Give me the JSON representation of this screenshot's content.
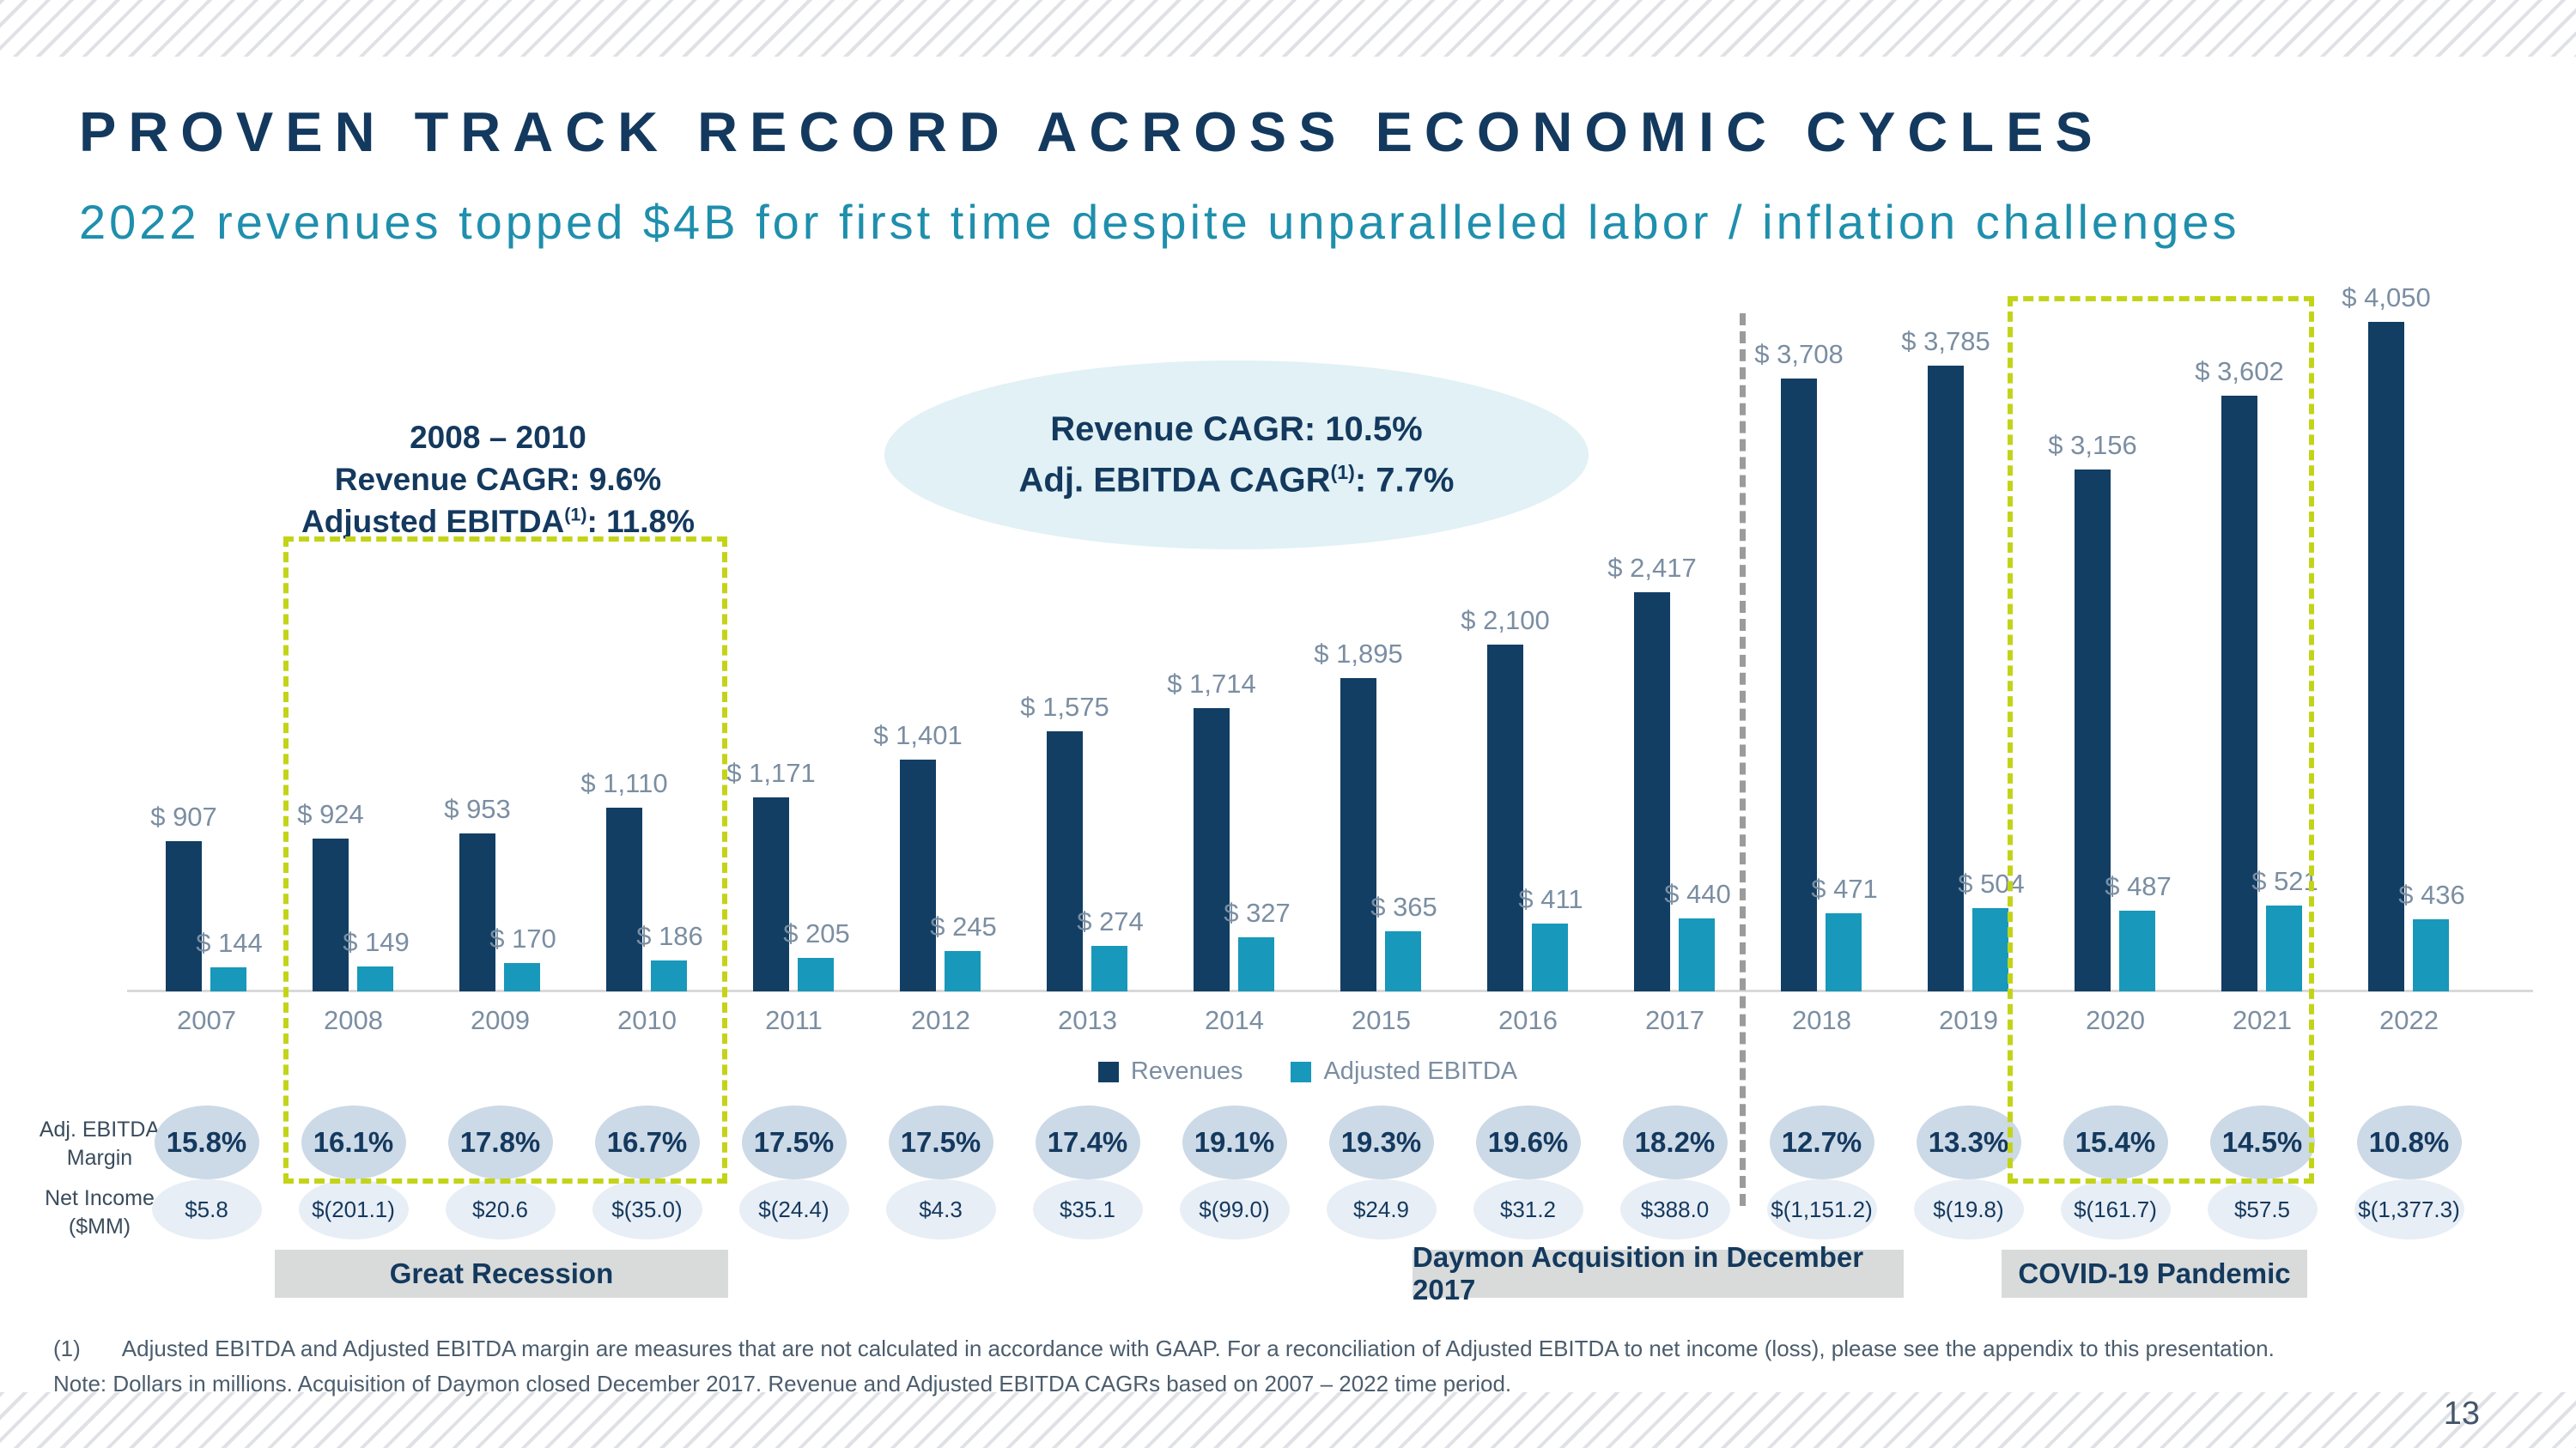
{
  "slide": {
    "title": "PROVEN TRACK RECORD ACROSS ECONOMIC CYCLES",
    "subtitle": "2022 revenues topped $4B for first time despite unparalleled labor / inflation challenges",
    "page_number": "13"
  },
  "callout_recession": {
    "line1": "2008 – 2010",
    "line2": "Revenue CAGR: 9.6%",
    "line3_pre": "Adjusted EBITDA",
    "line3_sup": "(1)",
    "line3_post": ": 11.8%"
  },
  "callout_overall": {
    "line1": "Revenue CAGR: 10.5%",
    "line2_pre": "Adj. EBITDA CAGR",
    "line2_sup": "(1)",
    "line2_post": ": 7.7%"
  },
  "chart_data": {
    "type": "bar",
    "title": "",
    "categories": [
      "2007",
      "2008",
      "2009",
      "2010",
      "2011",
      "2012",
      "2013",
      "2014",
      "2015",
      "2016",
      "2017",
      "2018",
      "2019",
      "2020",
      "2021",
      "2022"
    ],
    "axis_max": 4050,
    "ylim": [
      0,
      4050
    ],
    "grid": false,
    "legend_position": "bottom",
    "series": [
      {
        "name": "Revenues",
        "color": "#123e64",
        "values": [
          907,
          924,
          953,
          1110,
          1171,
          1401,
          1575,
          1714,
          1895,
          2100,
          2417,
          3708,
          3785,
          3156,
          3602,
          4050
        ],
        "labels": [
          "$ 907",
          "$ 924",
          "$ 953",
          "$ 1,110",
          "$ 1,171",
          "$ 1,401",
          "$ 1,575",
          "$ 1,714",
          "$ 1,895",
          "$ 2,100",
          "$ 2,417",
          "$ 3,708",
          "$ 3,785",
          "$ 3,156",
          "$ 3,602",
          "$ 4,050"
        ]
      },
      {
        "name": "Adjusted EBITDA",
        "color": "#1898ba",
        "values": [
          144,
          149,
          170,
          186,
          205,
          245,
          274,
          327,
          365,
          411,
          440,
          471,
          504,
          487,
          521,
          436
        ],
        "labels": [
          "$ 144",
          "$ 149",
          "$ 170",
          "$ 186",
          "$ 205",
          "$ 245",
          "$ 274",
          "$ 327",
          "$ 365",
          "$ 411",
          "$ 440",
          "$ 471",
          "$ 504",
          "$ 487",
          "$ 521",
          "$ 436"
        ]
      }
    ]
  },
  "stat_rows": {
    "margin": {
      "label_line1": "Adj. EBITDA",
      "label_line2": "Margin",
      "values": [
        "15.8%",
        "16.1%",
        "17.8%",
        "16.7%",
        "17.5%",
        "17.5%",
        "17.4%",
        "19.1%",
        "19.3%",
        "19.6%",
        "18.2%",
        "12.7%",
        "13.3%",
        "15.4%",
        "14.5%",
        "10.8%"
      ]
    },
    "net_income": {
      "label_line1": "Net Income",
      "label_line2": "($MM)",
      "values": [
        "$5.8",
        "$(201.1)",
        "$20.6",
        "$(35.0)",
        "$(24.4)",
        "$4.3",
        "$35.1",
        "$(99.0)",
        "$24.9",
        "$31.2",
        "$388.0",
        "$(1,151.2)",
        "$(19.8)",
        "$(161.7)",
        "$57.5",
        "$(1,377.3)"
      ]
    }
  },
  "banners": {
    "recession": "Great Recession",
    "daymon": "Daymon Acquisition in December 2017",
    "covid": "COVID-19 Pandemic"
  },
  "footnotes": {
    "marker": "(1)",
    "line1": "Adjusted EBITDA and Adjusted EBITDA margin are measures that are not calculated in accordance with GAAP. For a reconciliation of Adjusted EBITDA to net income (loss), please see the appendix to this presentation.",
    "line2": "Note: Dollars in millions. Acquisition of Daymon closed December 2017. Revenue and Adjusted EBITDA CAGRs based on 2007 – 2022 time period."
  },
  "colors": {
    "navy": "#14395e",
    "teal_text": "#1f8fad",
    "label_gray": "#7b8ea2",
    "bubble_dark": "#ccd9e6",
    "bubble_light": "#e8eef5",
    "banner_gray": "#d8dbda",
    "dash_yellow": "#c3d418",
    "dash_gray": "#9b9b9b",
    "axis_gray": "#d9d9d9",
    "hatch_gray": "#e0e1e5",
    "footnote_gray": "#4c5d6d",
    "row_label": "#3a4c5c",
    "ellipse_fill": "#e1f1f5"
  }
}
